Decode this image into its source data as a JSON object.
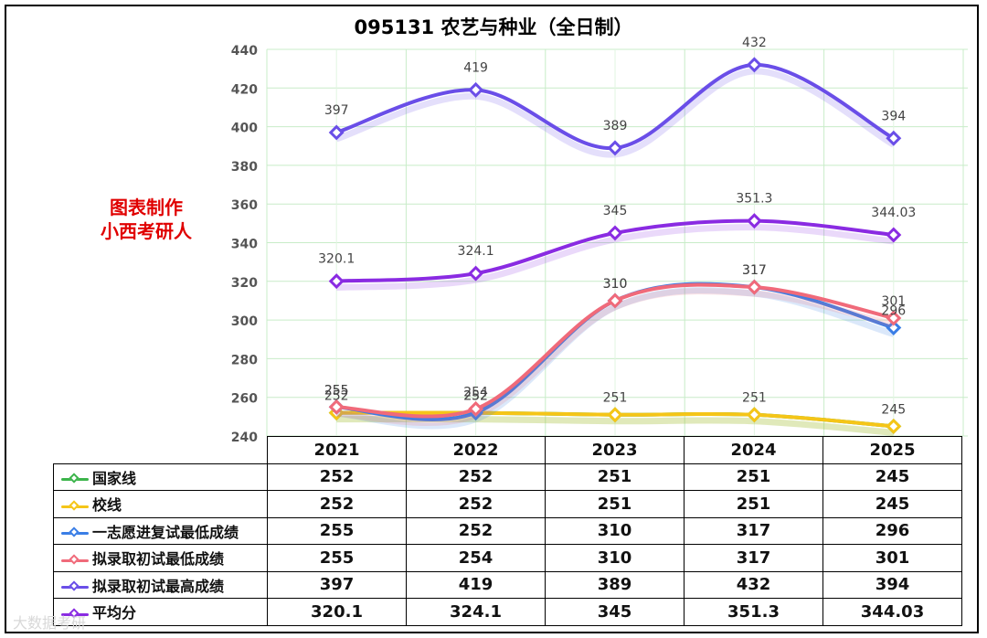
{
  "chart_data": {
    "type": "line",
    "title": "095131 农艺与种业（全日制）",
    "categories": [
      "2021",
      "2022",
      "2023",
      "2024",
      "2025"
    ],
    "ylim": [
      240,
      440
    ],
    "yticks": [
      240,
      260,
      280,
      300,
      320,
      340,
      360,
      380,
      400,
      420,
      440
    ],
    "grid": true,
    "series": [
      {
        "name": "国家线",
        "color": "#3cb44b",
        "values": [
          252,
          252,
          251,
          251,
          245
        ],
        "labels": false
      },
      {
        "name": "校线",
        "color": "#f5c518",
        "values": [
          252,
          252,
          251,
          251,
          245
        ],
        "labels": true
      },
      {
        "name": "一志愿进复试最低成绩",
        "color": "#3a7ee6",
        "values": [
          255,
          252,
          310,
          317,
          296
        ],
        "labels": true
      },
      {
        "name": "拟录取初试最低成绩",
        "color": "#f06a7a",
        "values": [
          255,
          254,
          310,
          317,
          301
        ],
        "labels": true
      },
      {
        "name": "拟录取初试最高成绩",
        "color": "#6a4ee8",
        "values": [
          397,
          419,
          389,
          432,
          394
        ],
        "labels": true
      },
      {
        "name": "平均分",
        "color": "#8a2be2",
        "values": [
          320.1,
          324.1,
          345,
          351.3,
          344.03
        ],
        "labels": true
      }
    ],
    "table_values": [
      [
        "252",
        "252",
        "251",
        "251",
        "245"
      ],
      [
        "252",
        "252",
        "251",
        "251",
        "245"
      ],
      [
        "255",
        "252",
        "310",
        "317",
        "296"
      ],
      [
        "255",
        "254",
        "310",
        "317",
        "301"
      ],
      [
        "397",
        "419",
        "389",
        "432",
        "394"
      ],
      [
        "320.1",
        "324.1",
        "345",
        "351.3",
        "344.03"
      ]
    ]
  },
  "watermark_lines": [
    "图表制作",
    "小西考研人"
  ],
  "bottom_watermark": "大数据考研"
}
